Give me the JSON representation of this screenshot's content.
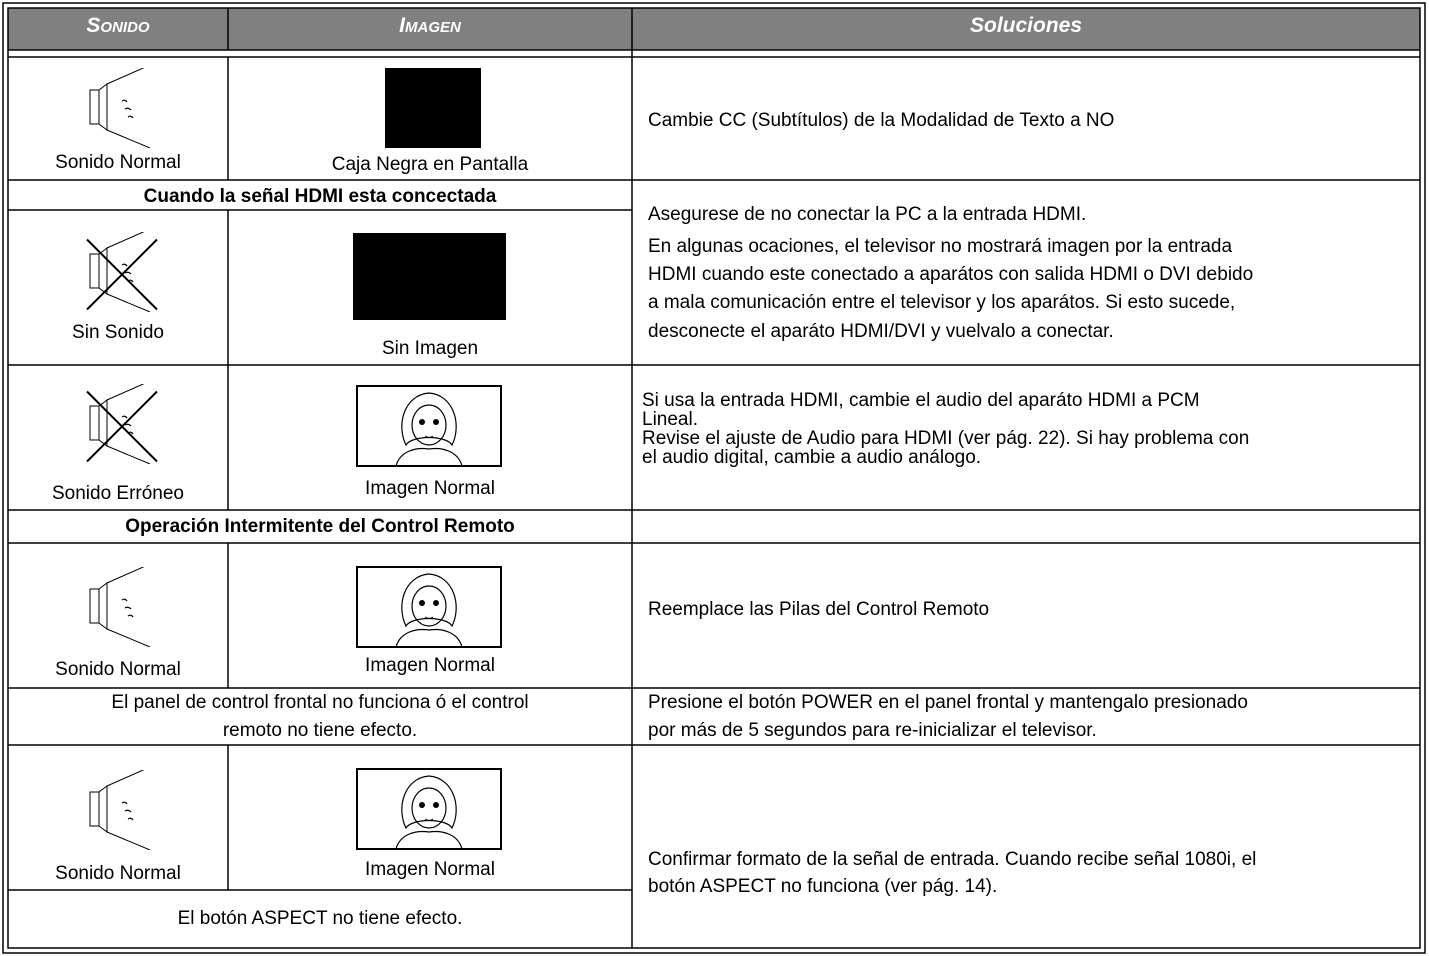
{
  "header": {
    "columns": [
      "Sonido",
      "Imagen",
      "Soluciones"
    ]
  },
  "rows": [
    {
      "sound": "Sonido Normal",
      "picture": "Caja Negra en Pantalla",
      "solution": [
        "Cambie CC (Subtítulos) de la Modalidad de Texto a NO"
      ]
    },
    {
      "condition": "Cuando la señal HDMI esta concectada",
      "solution": [
        "Asegurese de no conectar la PC a la entrada HDMI.",
        "En algunas ocaciones, el televisor no mostrará imagen por la entrada",
        "HDMI cuando este conectado a aparátos con salida HDMI o DVI debido",
        "a mala comunicación entre el televisor y los aparátos. Si esto sucede,",
        "desconecte el aparáto HDMI/DVI y vuelvalo a conectar."
      ]
    },
    {
      "sound": "Sin Sonido",
      "picture": "Sin Imagen"
    },
    {
      "sound": "Sonido Erróneo",
      "picture": "Imagen Normal",
      "solution": [
        "Si usa la entrada HDMI, cambie el audio del aparáto HDMI a PCM",
        "Lineal.",
        "Revise el ajuste de Audio para HDMI (ver pág. 22). Si hay problema con",
        "el audio digital, cambie a audio análogo."
      ]
    },
    {
      "condition": "Operación Intermitente del Control Remoto"
    },
    {
      "sound": "Sonido Normal",
      "picture": "Imagen Normal",
      "solution": [
        "Reemplace las Pilas del Control Remoto"
      ]
    },
    {
      "condition": [
        "El panel de control frontal no funciona ó el control",
        "remoto no tiene efecto."
      ],
      "solution": [
        "Presione el botón POWER en el panel frontal y mantengalo presionado",
        "por más de 5 segundos para re-inicializar el televisor."
      ]
    },
    {
      "sound": "Sonido Normal",
      "picture": "Imagen Normal",
      "solution": [
        "Confirmar formato de la señal de entrada. Cuando recibe señal 1080i, el",
        "botón ASPECT no funciona (ver pág. 14)."
      ]
    },
    {
      "condition": "El botón ASPECT no tiene efecto."
    }
  ]
}
